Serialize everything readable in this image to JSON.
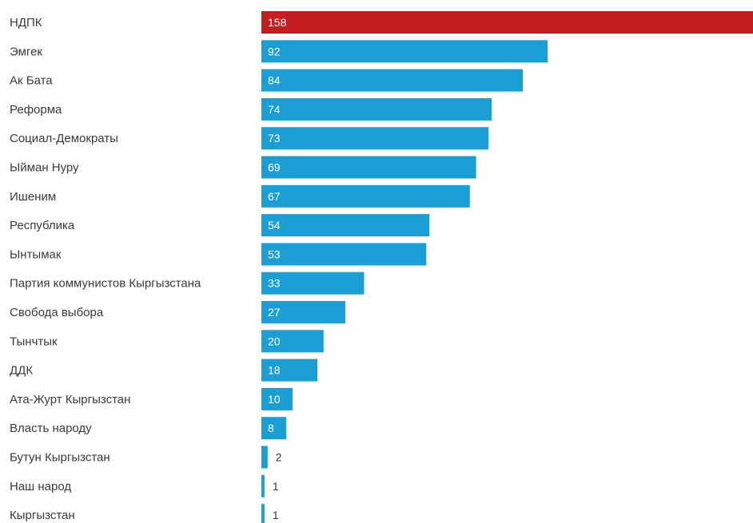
{
  "chart_data": {
    "type": "bar",
    "orientation": "horizontal",
    "title": "",
    "xlabel": "",
    "ylabel": "",
    "categories": [
      "НДПК",
      "Эмгек",
      "Ак Бата",
      "Реформа",
      "Социал-Демократы",
      "Ыйман Нуру",
      "Ишеним",
      "Республика",
      "Ынтымак",
      "Партия коммунистов Кыргызстана",
      "Свобода выбора",
      "Тынчтык",
      "ДДК",
      "Ата-Журт Кыргызстан",
      "Власть народу",
      "Бутун Кыргызстан",
      "Наш народ",
      "Кыргызстан"
    ],
    "values": [
      158,
      92,
      84,
      74,
      73,
      69,
      67,
      54,
      53,
      33,
      27,
      20,
      18,
      10,
      8,
      2,
      1,
      1
    ],
    "xlim": [
      0,
      158
    ],
    "grid": false,
    "legend": "none",
    "highlight_index": 0,
    "colors": {
      "highlight": "#c41e23",
      "bar": "#1b9ed4",
      "label": "#3a3a3a",
      "value_inside": "#ffffff",
      "value_outside": "#3a3a3a"
    }
  }
}
